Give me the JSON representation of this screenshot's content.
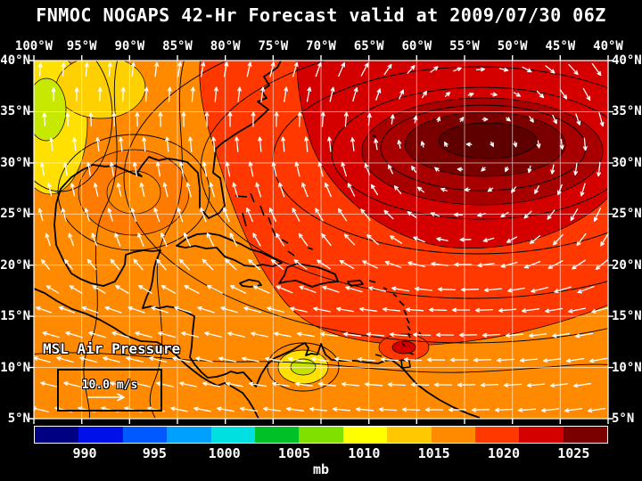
{
  "title": "FNMOC NOGAPS 42-Hr Forecast valid at 2009/07/30 06Z",
  "axes": {
    "lon_labels": [
      "100°W",
      "95°W",
      "90°W",
      "85°W",
      "80°W",
      "75°W",
      "70°W",
      "65°W",
      "60°W",
      "55°W",
      "50°W",
      "45°W",
      "40°W"
    ],
    "lat_labels": [
      "40°N",
      "35°N",
      "30°N",
      "25°N",
      "20°N",
      "15°N",
      "10°N",
      "5°N"
    ]
  },
  "overlays": {
    "field_label": "MSL Air Pressure",
    "wind_reference_label": "10.0 m/s"
  },
  "colorbar": {
    "tick_labels": [
      "990",
      "995",
      "1000",
      "1005",
      "1010",
      "1015",
      "1020",
      "1025"
    ],
    "unit_label": "mb",
    "segment_colors": [
      "#000082",
      "#0010E8",
      "#0058FF",
      "#00A0FF",
      "#00E0E0",
      "#00C028",
      "#80E000",
      "#FFFF00",
      "#FFC800",
      "#FF8A00",
      "#FF3800",
      "#D40000",
      "#7A0000"
    ]
  },
  "chart_data": {
    "type": "heatmap",
    "title": "FNMOC NOGAPS 42-Hr Forecast valid at 2009/07/30 06Z",
    "field": "MSL Air Pressure",
    "unit": "mb",
    "valid_time": "2009/07/30 06Z",
    "forecast_hour": 42,
    "lon_ticks_deg_west": [
      100,
      95,
      90,
      85,
      80,
      75,
      70,
      65,
      60,
      55,
      50,
      45,
      40
    ],
    "lat_ticks_deg_north": [
      40,
      35,
      30,
      25,
      20,
      15,
      10,
      5
    ],
    "grid_interval_deg": 5,
    "colorbar_levels_mb": [
      990,
      995,
      1000,
      1005,
      1010,
      1015,
      1020,
      1025
    ],
    "wind_reference_speed": "10.0 m/s",
    "features": [
      {
        "name": "subtropical-high",
        "type": "pressure-maximum",
        "lon_deg_west": 54,
        "lat_deg_north": 32,
        "approx_value_mb": 1026,
        "circulation": "anticyclonic-clockwise"
      },
      {
        "name": "trade-wind-easterlies",
        "type": "wind-band",
        "lat_range_deg_north": [
          5,
          20
        ],
        "direction": "westward"
      },
      {
        "name": "weak-low-southwest-us",
        "type": "pressure-minimum",
        "lon_deg_west": 98,
        "lat_deg_north": 37,
        "approx_value_mb": 1008
      },
      {
        "name": "weak-low-southern-caribbean",
        "type": "pressure-minimum",
        "lon_deg_west": 72,
        "lat_deg_north": 10.5,
        "approx_value_mb": 1009
      }
    ],
    "background_pressure_mb": {
      "gulf_of_mexico": 1012,
      "central_atlantic_ridge": 1022
    }
  }
}
